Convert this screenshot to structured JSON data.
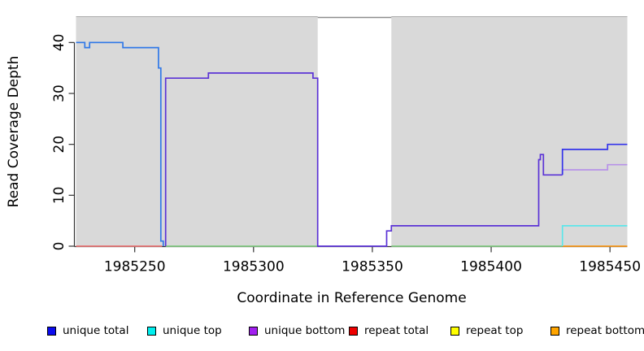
{
  "chart_data": {
    "type": "line",
    "subtype": "step-coverage-plot",
    "title": "",
    "xlabel": "Coordinate in Reference Genome",
    "ylabel": "Read Coverage Depth",
    "xlim": [
      1985225.3,
      1985457.3
    ],
    "ylim": [
      0,
      45
    ],
    "xticks": [
      1985250,
      1985300,
      1985350,
      1985400,
      1985450
    ],
    "xtick_labels": [
      "1985250",
      "1985300",
      "1985350",
      "1985400",
      "1985450"
    ],
    "yticks": [
      0,
      10,
      20,
      30,
      40
    ],
    "ytick_labels": [
      "0",
      "10",
      "20",
      "30",
      "40"
    ],
    "grid": false,
    "plot_background_color": "#d9d9d9",
    "coverage_regions": [
      [
        1985225.3,
        1985327
      ],
      [
        1985358,
        1985457.3
      ]
    ],
    "no_data_gap": [
      1985327,
      1985358
    ],
    "region_border_color": "#ababab",
    "gap_border_color": "#8e8e8e",
    "axis_color": "#333333",
    "series": [
      {
        "name": "repeat-total-baseline",
        "legend_ref": "repeat total",
        "color": "#e57373",
        "segments": [
          [
            [
              1985225.3,
              0
            ],
            [
              1985261.5,
              0
            ]
          ]
        ]
      },
      {
        "name": "unique-top-repeat-top-overlap-baseline",
        "legend_ref": "unique top + repeat top",
        "color": "#82c982",
        "segments": [
          [
            [
              1985263,
              0
            ],
            [
              1985327,
              0
            ]
          ],
          [
            [
              1985358,
              0
            ],
            [
              1985430,
              0
            ]
          ]
        ]
      },
      {
        "name": "repeat-bottom",
        "legend_ref": "repeat bottom",
        "color": "#f8991d",
        "segments": [
          [
            [
              1985430,
              0
            ],
            [
              1985457.3,
              0
            ]
          ]
        ]
      },
      {
        "name": "unique-top",
        "legend_ref": "unique top",
        "color": "#5ce6ea",
        "segments": [
          [
            [
              1985430,
              0
            ],
            [
              1985430,
              4
            ],
            [
              1985457.3,
              4
            ]
          ]
        ]
      },
      {
        "name": "unique-bottom-with-total-overlap",
        "legend_ref": "unique bottom",
        "color": "#5b33d6",
        "segments": [
          [
            [
              1985263,
              0
            ],
            [
              1985263,
              33
            ],
            [
              1985281,
              33
            ],
            [
              1985281,
              34
            ],
            [
              1985325,
              34
            ],
            [
              1985325,
              33
            ],
            [
              1985327,
              33
            ],
            [
              1985327,
              0
            ],
            [
              1985356,
              0
            ],
            [
              1985356,
              3
            ],
            [
              1985358,
              3
            ],
            [
              1985358,
              4
            ],
            [
              1985420,
              4
            ],
            [
              1985420,
              17
            ],
            [
              1985420.7,
              17
            ],
            [
              1985420.7,
              18
            ],
            [
              1985422,
              18
            ],
            [
              1985422,
              14
            ],
            [
              1985430,
              14
            ]
          ]
        ]
      },
      {
        "name": "unique-bottom-separate",
        "legend_ref": "unique bottom",
        "color": "#b792e8",
        "segments": [
          [
            [
              1985430,
              14
            ],
            [
              1985430,
              15
            ],
            [
              1985449,
              15
            ],
            [
              1985449,
              16
            ],
            [
              1985457.3,
              16
            ]
          ]
        ]
      },
      {
        "name": "unique-total-left",
        "legend_ref": "unique total",
        "color": "#3179e8",
        "segments": [
          [
            [
              1985225.3,
              40
            ],
            [
              1985229,
              40
            ],
            [
              1985229,
              39
            ],
            [
              1985231,
              39
            ],
            [
              1985231,
              40
            ],
            [
              1985245,
              40
            ],
            [
              1985245,
              39
            ],
            [
              1985260,
              39
            ],
            [
              1985260,
              35
            ],
            [
              1985261,
              35
            ],
            [
              1985261,
              1
            ],
            [
              1985262,
              1
            ],
            [
              1985262,
              0
            ]
          ]
        ]
      },
      {
        "name": "unique-total-right",
        "legend_ref": "unique total",
        "color": "#3434ea",
        "segments": [
          [
            [
              1985430,
              14
            ],
            [
              1985430,
              19
            ],
            [
              1985449,
              19
            ],
            [
              1985449,
              20
            ],
            [
              1985457.3,
              20
            ]
          ]
        ]
      }
    ],
    "legend_position": "bottom-horizontal"
  },
  "legend": {
    "items": [
      {
        "label": "unique total",
        "color": "#0b0bef"
      },
      {
        "label": "unique top",
        "color": "#00efef"
      },
      {
        "label": "unique bottom",
        "color": "#a21ff0"
      },
      {
        "label": "repeat total",
        "color": "#ee0000"
      },
      {
        "label": "repeat top",
        "color": "#ffff00"
      },
      {
        "label": "repeat bottom",
        "color": "#ffa500"
      }
    ]
  }
}
